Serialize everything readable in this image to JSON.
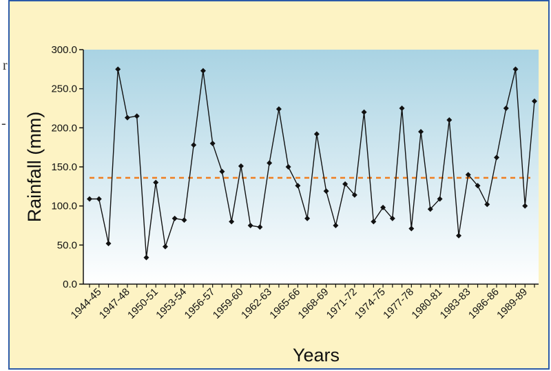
{
  "edge_text": [
    "r",
    "-"
  ],
  "colors": {
    "frame_bg": "#fdf3c4",
    "frame_border": "#2b5aa8",
    "plot_top": "#a9d3e3",
    "plot_bottom": "#ffffff",
    "line": "#111111",
    "marker": "#111111",
    "average_line": "#f07d1e"
  },
  "chart_data": {
    "type": "line",
    "xlabel": "Years",
    "ylabel": "Rainfall (mm)",
    "ylim": [
      0,
      300
    ],
    "yticks": [
      "0.0",
      "50.0",
      "100.0",
      "150.0",
      "200.0",
      "250.0",
      "300.0"
    ],
    "x_tick_labels": [
      "1944-45",
      "1947-48",
      "1950-51",
      "1953-54",
      "1956-57",
      "1959-60",
      "1962-63",
      "1965-66",
      "1968-69",
      "1971-72",
      "1974-75",
      "1977-78",
      "1980-81",
      "1983-83",
      "1986-86",
      "1989-89"
    ],
    "grid": false,
    "values": [
      109,
      109,
      52,
      275,
      213,
      215,
      34,
      130,
      48,
      84,
      82,
      178,
      273,
      180,
      144,
      80,
      151,
      75,
      73,
      155,
      224,
      150,
      126,
      84,
      192,
      119,
      75,
      128,
      114,
      220,
      80,
      98,
      84,
      225,
      71,
      195,
      96,
      109,
      210,
      62,
      140,
      126,
      102,
      162,
      225,
      275,
      100,
      234
    ],
    "average_line": {
      "value": 136,
      "style": "dashed"
    }
  }
}
